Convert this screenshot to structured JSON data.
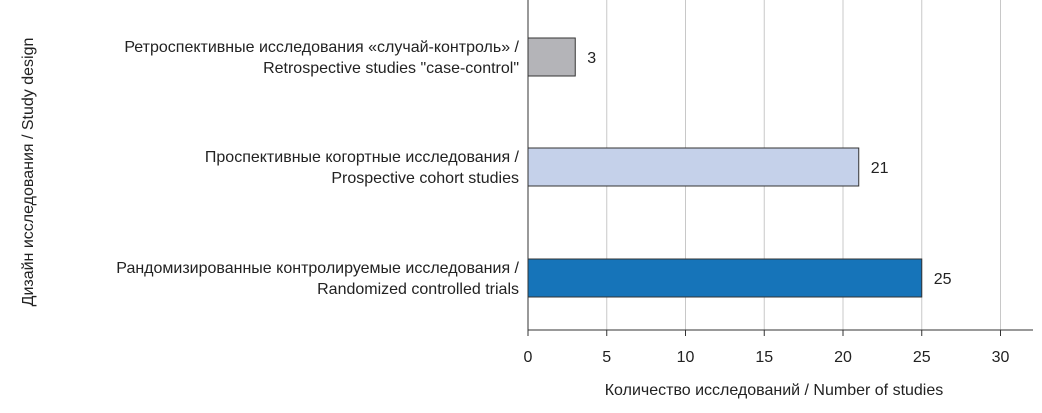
{
  "chart_data": {
    "type": "bar",
    "orientation": "horizontal",
    "xlabel": "Количество исследований / Number of studies",
    "ylabel": "Дизайн исследования / Study design",
    "xlim": [
      0,
      32
    ],
    "xticks": [
      0,
      5,
      10,
      15,
      20,
      25,
      30
    ],
    "grid": "vertical",
    "categories": [
      {
        "line1": "Ретроспективные исследования «случай-контроль» /",
        "line2": "Retrospective studies \"case-control\"",
        "value": 3,
        "color": "#b4b4b8"
      },
      {
        "line1": "Проспективные когортные исследования /",
        "line2": "Prospective cohort studies",
        "value": 21,
        "color": "#c5d1ea"
      },
      {
        "line1": "Рандомизированные контролируемые исследования /",
        "line2": "Randomized controlled trials",
        "value": 25,
        "color": "#1674b9"
      }
    ]
  }
}
